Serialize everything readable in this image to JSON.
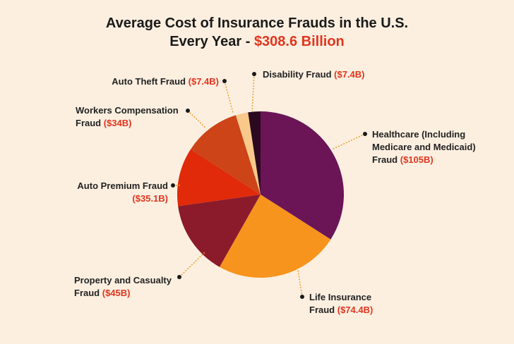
{
  "chart_data": {
    "type": "pie",
    "title": "Average Cost of Insurance Frauds in the U.S. Every Year -",
    "total_label": "$308.6 Billion",
    "categories": [
      "Healthcare (Including Medicare and Medicaid) Fraud",
      "Life Insurance Fraud",
      "Property and Casualty Fraud",
      "Auto Premium Fraud",
      "Workers Compensation Fraud",
      "Auto Theft Fraud",
      "Disability Fraud"
    ],
    "values": [
      105,
      74.4,
      45,
      35.1,
      34,
      7.4,
      7.4
    ],
    "value_labels": [
      "($105B)",
      "($74.4B)",
      "($45B)",
      "($35.1B)",
      "($34B)",
      "($7.4B)",
      "($7.4B)"
    ],
    "colors": [
      "#6b1557",
      "#f7941d",
      "#8b1a2b",
      "#e02a0a",
      "#cc4418",
      "#f9c98b",
      "#2b0a20"
    ]
  }
}
